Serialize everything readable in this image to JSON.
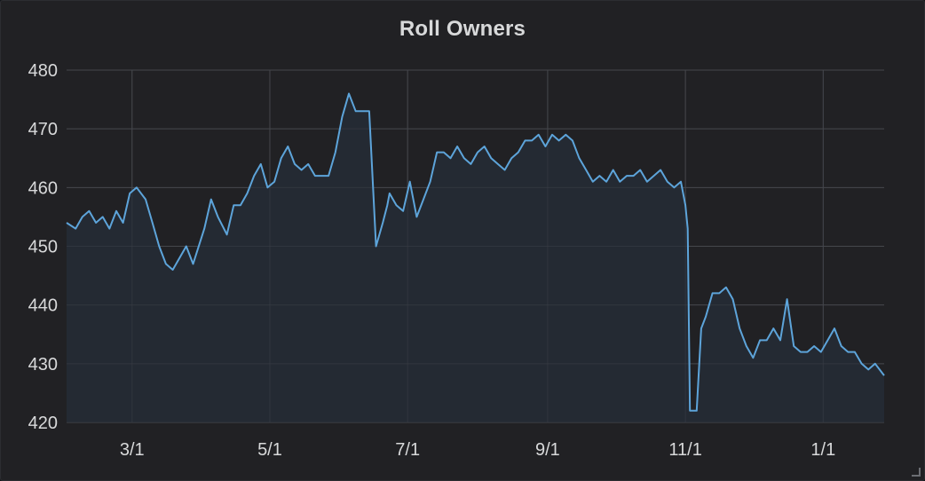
{
  "panel": {
    "title": "Roll Owners"
  },
  "chart_data": {
    "type": "area",
    "title": "Roll Owners",
    "xlabel": "",
    "ylabel": "",
    "ylim": [
      420,
      480
    ],
    "yticks": [
      420,
      430,
      440,
      450,
      460,
      470,
      480
    ],
    "xlim": [
      "2020-02-01",
      "2021-01-28"
    ],
    "xticks": [
      {
        "date": "2020-03-01",
        "label": "3/1"
      },
      {
        "date": "2020-05-01",
        "label": "5/1"
      },
      {
        "date": "2020-07-01",
        "label": "7/1"
      },
      {
        "date": "2020-09-01",
        "label": "9/1"
      },
      {
        "date": "2020-11-01",
        "label": "11/1"
      },
      {
        "date": "2021-01-01",
        "label": "1/1"
      }
    ],
    "grid": true,
    "legend": "none",
    "colors": {
      "line": "#5da4da",
      "fill": "#252b35",
      "grid": "#46474c",
      "tick_text": "#d8d9da"
    },
    "series": [
      {
        "x": [
          "2020-02-01",
          "2020-02-05",
          "2020-02-08",
          "2020-02-11",
          "2020-02-14",
          "2020-02-17",
          "2020-02-20",
          "2020-02-23",
          "2020-02-26",
          "2020-02-29",
          "2020-03-03",
          "2020-03-07",
          "2020-03-10",
          "2020-03-13",
          "2020-03-16",
          "2020-03-19",
          "2020-03-22",
          "2020-03-25",
          "2020-03-28",
          "2020-04-02",
          "2020-04-05",
          "2020-04-08",
          "2020-04-12",
          "2020-04-15",
          "2020-04-18",
          "2020-04-21",
          "2020-04-24",
          "2020-04-27",
          "2020-04-30",
          "2020-05-03",
          "2020-05-06",
          "2020-05-09",
          "2020-05-12",
          "2020-05-15",
          "2020-05-18",
          "2020-05-21",
          "2020-05-24",
          "2020-05-27",
          "2020-05-30",
          "2020-06-02",
          "2020-06-05",
          "2020-06-08",
          "2020-06-11",
          "2020-06-14",
          "2020-06-17",
          "2020-06-20",
          "2020-06-22",
          "2020-06-23",
          "2020-06-26",
          "2020-06-29",
          "2020-07-02",
          "2020-07-05",
          "2020-07-08",
          "2020-07-11",
          "2020-07-14",
          "2020-07-17",
          "2020-07-20",
          "2020-07-23",
          "2020-07-26",
          "2020-07-29",
          "2020-08-01",
          "2020-08-04",
          "2020-08-07",
          "2020-08-10",
          "2020-08-13",
          "2020-08-16",
          "2020-08-19",
          "2020-08-22",
          "2020-08-25",
          "2020-08-28",
          "2020-08-31",
          "2020-09-03",
          "2020-09-06",
          "2020-09-09",
          "2020-09-12",
          "2020-09-15",
          "2020-09-18",
          "2020-09-21",
          "2020-09-24",
          "2020-09-27",
          "2020-09-30",
          "2020-10-03",
          "2020-10-06",
          "2020-10-09",
          "2020-10-12",
          "2020-10-15",
          "2020-10-18",
          "2020-10-21",
          "2020-10-24",
          "2020-10-27",
          "2020-10-30",
          "2020-11-01",
          "2020-11-02",
          "2020-11-03",
          "2020-11-06",
          "2020-11-08",
          "2020-11-10",
          "2020-11-13",
          "2020-11-16",
          "2020-11-19",
          "2020-11-22",
          "2020-11-25",
          "2020-11-28",
          "2020-12-01",
          "2020-12-04",
          "2020-12-07",
          "2020-12-10",
          "2020-12-13",
          "2020-12-16",
          "2020-12-19",
          "2020-12-22",
          "2020-12-25",
          "2020-12-28",
          "2020-12-31",
          "2021-01-03",
          "2021-01-06",
          "2021-01-09",
          "2021-01-12",
          "2021-01-15",
          "2021-01-18",
          "2021-01-21",
          "2021-01-24",
          "2021-01-28"
        ],
        "y": [
          454,
          453,
          455,
          456,
          454,
          455,
          453,
          456,
          454,
          459,
          460,
          458,
          454,
          450,
          447,
          446,
          448,
          450,
          447,
          453,
          458,
          455,
          452,
          457,
          457,
          459,
          462,
          464,
          460,
          461,
          465,
          467,
          464,
          463,
          464,
          462,
          462,
          462,
          466,
          472,
          476,
          473,
          473,
          473,
          450,
          454,
          457,
          459,
          457,
          456,
          461,
          455,
          458,
          461,
          466,
          466,
          465,
          467,
          465,
          464,
          466,
          467,
          465,
          464,
          463,
          465,
          466,
          468,
          468,
          469,
          467,
          469,
          468,
          469,
          468,
          465,
          463,
          461,
          462,
          461,
          463,
          461,
          462,
          462,
          463,
          461,
          462,
          463,
          461,
          460,
          461,
          457,
          453,
          422,
          422,
          436,
          438,
          442,
          442,
          443,
          441,
          436,
          433,
          431,
          434,
          434,
          436,
          434,
          441,
          433,
          432,
          432,
          433,
          432,
          434,
          436,
          433,
          432,
          432,
          430,
          429,
          430,
          428
        ]
      }
    ]
  }
}
